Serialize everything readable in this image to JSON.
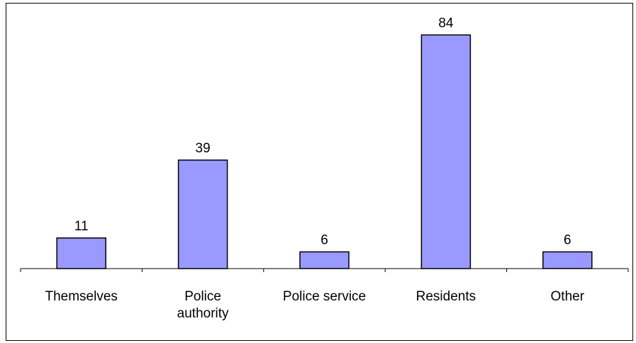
{
  "colors": {
    "bar_fill": "#9999ff",
    "bar_stroke": "#000000",
    "background": "#ffffff"
  },
  "chart_data": {
    "type": "bar",
    "title": "",
    "xlabel": "",
    "ylabel": "",
    "categories": [
      [
        "Themselves"
      ],
      [
        "Police",
        "authority"
      ],
      [
        "Police service"
      ],
      [
        "Residents"
      ],
      [
        "Other"
      ]
    ],
    "values": [
      11,
      39,
      6,
      84,
      6
    ],
    "data_labels": [
      "11",
      "39",
      "6",
      "84",
      "6"
    ],
    "ylim": [
      0,
      90
    ],
    "grid": false,
    "legend": "none"
  }
}
